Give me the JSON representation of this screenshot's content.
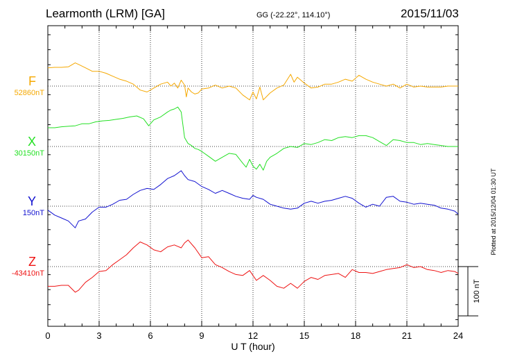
{
  "header": {
    "station": "Learmonth (LRM)  [GA]",
    "coords": "GG (-22.22°, 114.10°)",
    "date": "2015/11/03",
    "plotted": "Plotted at 2015/12/04 01:30 UT"
  },
  "chart_data": {
    "type": "line",
    "xlabel": "U T (hour)",
    "xlim": [
      0,
      24
    ],
    "xticks": [
      "0",
      "3",
      "6",
      "9",
      "12",
      "15",
      "18",
      "21",
      "24"
    ],
    "scale_bar_label": "100 nT",
    "scale_bar_nT": 100,
    "grid": true,
    "series": [
      {
        "name": "F",
        "baseline": "52860nT",
        "color": "#f5a800",
        "t": [
          0,
          0.4,
          0.8,
          1.2,
          1.6,
          1.8,
          2.2,
          2.6,
          3.0,
          3.4,
          3.8,
          4.2,
          4.6,
          5.0,
          5.4,
          5.8,
          6.2,
          6.6,
          7.0,
          7.2,
          7.4,
          7.6,
          7.8,
          8.0,
          8.1,
          8.2,
          8.4,
          8.6,
          8.8,
          9.0,
          9.4,
          9.8,
          10.2,
          10.6,
          11.0,
          11.4,
          11.8,
          12.0,
          12.2,
          12.4,
          12.6,
          13.0,
          13.4,
          13.8,
          14.2,
          14.4,
          14.6,
          15.0,
          15.4,
          15.8,
          16.2,
          16.6,
          17.0,
          17.4,
          17.8,
          18.2,
          18.6,
          19.0,
          19.4,
          19.8,
          20.2,
          20.6,
          21.0,
          21.4,
          21.8,
          22.2,
          22.6,
          23.0,
          23.4,
          23.8,
          24.0
        ],
        "v": [
          37,
          38,
          38,
          39,
          47,
          44,
          37,
          30,
          30,
          26,
          20,
          14,
          10,
          4,
          -8,
          -12,
          -4,
          4,
          8,
          0,
          6,
          -4,
          12,
          2,
          -22,
          -4,
          -12,
          -16,
          -14,
          -6,
          -4,
          2,
          -4,
          0,
          -4,
          -18,
          -28,
          -12,
          -26,
          -2,
          -28,
          -14,
          -4,
          2,
          24,
          8,
          18,
          6,
          -4,
          -2,
          4,
          4,
          8,
          14,
          10,
          22,
          14,
          8,
          4,
          0,
          4,
          -4,
          4,
          -2,
          0,
          -2,
          -2,
          -2,
          0,
          0,
          0
        ]
      },
      {
        "name": "X",
        "baseline": "30150nT",
        "color": "#22e022",
        "t": [
          0,
          0.4,
          0.8,
          1.2,
          1.6,
          2.0,
          2.4,
          2.8,
          3.2,
          3.6,
          4.0,
          4.4,
          4.8,
          5.2,
          5.6,
          5.9,
          6.2,
          6.6,
          7.0,
          7.2,
          7.4,
          7.6,
          7.8,
          8.0,
          8.1,
          8.2,
          8.4,
          8.6,
          8.8,
          9.0,
          9.4,
          9.8,
          10.2,
          10.6,
          11.0,
          11.4,
          11.6,
          11.8,
          12.0,
          12.2,
          12.4,
          12.6,
          12.8,
          13.0,
          13.4,
          13.8,
          14.2,
          14.6,
          15.0,
          15.4,
          15.8,
          16.2,
          16.6,
          17.0,
          17.4,
          17.8,
          18.2,
          18.6,
          19.0,
          19.4,
          19.8,
          20.2,
          20.6,
          21.0,
          21.4,
          21.8,
          22.2,
          22.6,
          23.0,
          23.4,
          23.8,
          24.0
        ],
        "v": [
          38,
          38,
          40,
          41,
          42,
          46,
          46,
          50,
          52,
          53,
          55,
          57,
          60,
          62,
          56,
          42,
          54,
          60,
          70,
          74,
          76,
          80,
          70,
          18,
          12,
          6,
          2,
          -4,
          -6,
          -10,
          -20,
          -30,
          -22,
          -14,
          -16,
          -34,
          -42,
          -26,
          -40,
          -46,
          -36,
          -48,
          -30,
          -22,
          -14,
          -4,
          0,
          -2,
          6,
          4,
          8,
          14,
          12,
          18,
          20,
          18,
          22,
          22,
          18,
          10,
          2,
          14,
          12,
          8,
          8,
          4,
          6,
          4,
          2,
          0,
          0,
          0
        ]
      },
      {
        "name": "Y",
        "baseline": "150nT",
        "color": "#1010d0",
        "t": [
          0,
          0.4,
          0.8,
          1.2,
          1.6,
          1.8,
          2.2,
          2.6,
          3.0,
          3.4,
          3.8,
          4.2,
          4.6,
          5.0,
          5.4,
          5.8,
          6.2,
          6.6,
          7.0,
          7.4,
          7.8,
          8.0,
          8.2,
          8.6,
          9.0,
          9.4,
          9.8,
          10.2,
          10.6,
          11.0,
          11.4,
          11.8,
          12.0,
          12.2,
          12.6,
          13.0,
          13.4,
          13.8,
          14.2,
          14.6,
          15.0,
          15.4,
          15.8,
          16.2,
          16.6,
          17.0,
          17.4,
          17.8,
          18.2,
          18.6,
          19.0,
          19.4,
          19.8,
          20.2,
          20.6,
          21.0,
          21.4,
          21.8,
          22.2,
          22.6,
          23.0,
          23.4,
          23.8,
          24.0
        ],
        "v": [
          -8,
          -18,
          -24,
          -30,
          -44,
          -30,
          -26,
          -12,
          -2,
          -2,
          4,
          12,
          14,
          24,
          32,
          36,
          34,
          44,
          56,
          62,
          72,
          62,
          54,
          50,
          40,
          34,
          26,
          32,
          26,
          20,
          16,
          14,
          22,
          18,
          14,
          4,
          0,
          -4,
          -6,
          -4,
          6,
          10,
          6,
          10,
          12,
          16,
          20,
          16,
          6,
          -2,
          4,
          0,
          18,
          20,
          10,
          8,
          4,
          6,
          4,
          2,
          -4,
          -6,
          -10,
          -16
        ]
      },
      {
        "name": "Z",
        "baseline": "-43410nT",
        "color": "#ee1111",
        "t": [
          0,
          0.4,
          0.8,
          1.2,
          1.6,
          1.8,
          2.2,
          2.6,
          3.0,
          3.4,
          3.8,
          4.2,
          4.6,
          5.0,
          5.4,
          5.8,
          6.2,
          6.6,
          7.0,
          7.4,
          7.8,
          8.0,
          8.2,
          8.6,
          9.0,
          9.4,
          9.8,
          10.2,
          10.6,
          11.0,
          11.4,
          11.8,
          12.2,
          12.6,
          13.0,
          13.4,
          13.8,
          14.2,
          14.6,
          15.0,
          15.4,
          15.8,
          16.2,
          16.6,
          17.0,
          17.4,
          17.8,
          18.2,
          18.6,
          19.0,
          19.4,
          19.8,
          20.2,
          20.6,
          21.0,
          21.4,
          21.8,
          22.2,
          22.6,
          23.0,
          23.4,
          23.8,
          24.0
        ],
        "v": [
          -40,
          -40,
          -38,
          -38,
          -52,
          -48,
          -32,
          -22,
          -10,
          -8,
          4,
          14,
          24,
          38,
          50,
          44,
          34,
          30,
          40,
          44,
          38,
          48,
          54,
          38,
          18,
          20,
          4,
          -2,
          -10,
          -16,
          -18,
          -8,
          -28,
          -18,
          -28,
          -40,
          -44,
          -34,
          -44,
          -30,
          -22,
          -26,
          -18,
          -16,
          -14,
          -22,
          -6,
          -12,
          -12,
          -14,
          -10,
          -6,
          -4,
          -2,
          4,
          -2,
          0,
          -6,
          -8,
          -12,
          -8,
          -10,
          -14
        ]
      }
    ]
  }
}
